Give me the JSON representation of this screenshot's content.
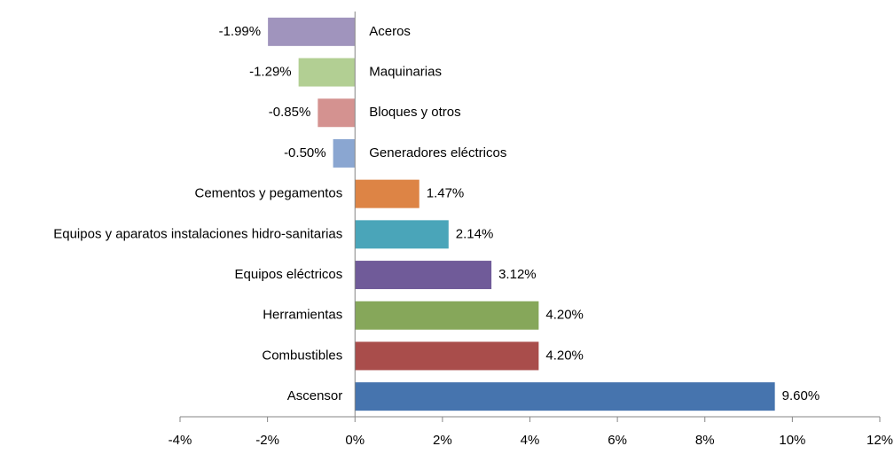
{
  "chart_data": {
    "type": "bar",
    "categories": [
      "Aceros",
      "Maquinarias",
      "Bloques y otros",
      "Generadores eléctricos",
      "Cementos y pegamentos",
      "Equipos y aparatos instalaciones hidro-sanitarias",
      "Equipos eléctricos",
      "Herramientas",
      "Combustibles",
      "Ascensor"
    ],
    "values": [
      -1.99,
      -1.29,
      -0.85,
      -0.5,
      1.47,
      2.14,
      3.12,
      4.2,
      4.2,
      9.6
    ],
    "value_labels": [
      "-1.99%",
      "-1.29%",
      "-0.85%",
      "-0.50%",
      "1.47%",
      "2.14%",
      "3.12%",
      "4.20%",
      "4.20%",
      "9.60%"
    ],
    "colors": [
      "#a094bd",
      "#b2cf93",
      "#d49290",
      "#8aa6d1",
      "#dd8445",
      "#4aa5b9",
      "#705b99",
      "#86a75a",
      "#a94d4b",
      "#4674ae"
    ],
    "xlim": [
      -4,
      12
    ],
    "xticks": [
      {
        "value": -4,
        "label": "-4%"
      },
      {
        "value": -2,
        "label": "-2%"
      },
      {
        "value": 0,
        "label": "0%"
      },
      {
        "value": 2,
        "label": "2%"
      },
      {
        "value": 4,
        "label": "4%"
      },
      {
        "value": 6,
        "label": "6%"
      },
      {
        "value": 8,
        "label": "8%"
      },
      {
        "value": 10,
        "label": "10%"
      },
      {
        "value": 12,
        "label": "12%"
      }
    ]
  }
}
